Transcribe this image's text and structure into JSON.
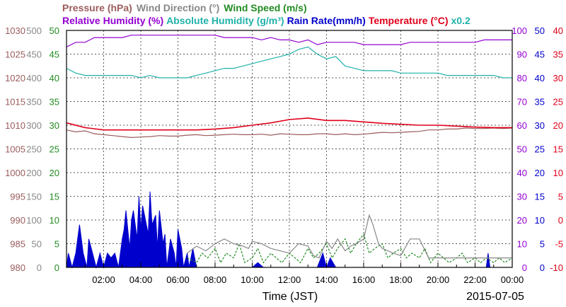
{
  "chart_data": {
    "type": "line",
    "date": "2015-07-05",
    "xlabel": "Time (JST)",
    "x_ticks": [
      "02:00",
      "04:00",
      "06:00",
      "08:00",
      "10:00",
      "12:00",
      "14:00",
      "16:00",
      "18:00",
      "20:00",
      "22:00",
      "00:00"
    ],
    "legend_row1": [
      {
        "label": "Pressure (hPa)",
        "color": "#9b5c5c"
      },
      {
        "label": "Wind Direction (°)",
        "color": "#888888"
      },
      {
        "label": "Wind Speed (m/s)",
        "color": "#228b22"
      }
    ],
    "legend_row2": [
      {
        "label": "Relative Humidity (%)",
        "color": "#9400d3"
      },
      {
        "label": "Absolute Humidity (g/m³)",
        "color": "#20b2aa"
      },
      {
        "label": "Rain Rate(mm/h)",
        "color": "#0000cd"
      },
      {
        "label": "Temperature (°C)",
        "color": "#e0001b"
      },
      {
        "label": "x0.2",
        "color": "#20b2aa"
      }
    ],
    "axes": {
      "pressure": {
        "color": "#9b5c5c",
        "range": [
          980,
          1030
        ],
        "ticks": [
          "1030",
          "1025",
          "1020",
          "1015",
          "1010",
          "1005",
          "1000",
          "995",
          "990",
          "985",
          "980"
        ]
      },
      "wind_direction": {
        "color": "#888888",
        "range": [
          0,
          500
        ],
        "ticks": [
          "500",
          "450",
          "400",
          "350",
          "300",
          "250",
          "200",
          "150",
          "100",
          "50",
          "0"
        ]
      },
      "wind_speed": {
        "color": "#228b22",
        "range": [
          0,
          50
        ],
        "ticks": [
          "50",
          "45",
          "40",
          "35",
          "30",
          "25",
          "20",
          "15",
          "10",
          "5",
          "0"
        ]
      },
      "humidity": {
        "color": "#9400d3",
        "range": [
          0,
          100
        ],
        "ticks": [
          "100",
          "90",
          "80",
          "70",
          "60",
          "50",
          "40",
          "30",
          "20",
          "10",
          "0"
        ]
      },
      "rain_rate": {
        "color": "#0000cd",
        "range": [
          0,
          50
        ],
        "ticks": [
          "50",
          "45",
          "40",
          "35",
          "30",
          "25",
          "20",
          "15",
          "10",
          "5",
          "0"
        ]
      },
      "temperature": {
        "color": "#e0001b",
        "range": [
          -10,
          40
        ],
        "ticks": [
          "40",
          "35",
          "30",
          "25",
          "20",
          "15",
          "10",
          "5",
          "0",
          "-5",
          "-10"
        ]
      }
    },
    "series": [
      {
        "name": "Relative Humidity (%)",
        "axis": "humidity",
        "color": "#9400d3",
        "x": [
          0,
          0.5,
          1,
          1.5,
          2,
          2.5,
          3,
          3.5,
          4,
          4.5,
          5,
          5.5,
          6,
          6.5,
          7,
          7.5,
          8,
          8.5,
          9,
          9.5,
          10,
          10.5,
          11,
          11.5,
          12,
          12.5,
          13,
          13.5,
          14,
          14.5,
          15,
          15.5,
          16,
          16.5,
          17,
          17.5,
          18,
          18.5,
          19,
          19.5,
          20,
          20.5,
          21,
          21.5,
          22,
          22.5,
          23,
          23.5,
          24
        ],
        "y": [
          93,
          95,
          95,
          97,
          97,
          97,
          97,
          98,
          98,
          98,
          98,
          98,
          98,
          98,
          98,
          98,
          98,
          97,
          97,
          97,
          97,
          96,
          97,
          96,
          96,
          95,
          96,
          94,
          95,
          95,
          95,
          95,
          94,
          94,
          94,
          94,
          94,
          95,
          95,
          95,
          95,
          95,
          95,
          95,
          95,
          96,
          96,
          96,
          96
        ]
      },
      {
        "name": "Absolute Humidity (g/m³)",
        "axis": "humidity",
        "color": "#20b2aa",
        "x": [
          0,
          0.5,
          1,
          1.5,
          2,
          2.5,
          3,
          3.5,
          4,
          4.5,
          5,
          5.5,
          6,
          6.5,
          7,
          7.5,
          8,
          8.5,
          9,
          9.5,
          10,
          10.5,
          11,
          11.5,
          12,
          12.5,
          13,
          13.5,
          14,
          14.5,
          15,
          15.5,
          16,
          16.5,
          17,
          17.5,
          18,
          18.5,
          19,
          19.5,
          20,
          20.5,
          21,
          21.5,
          22,
          22.5,
          23,
          23.5,
          24
        ],
        "y": [
          84,
          82,
          81,
          81,
          81,
          81,
          81,
          81,
          80,
          81,
          80,
          80,
          80,
          80,
          81,
          82,
          83,
          84,
          84,
          85,
          86,
          87,
          88,
          89,
          90,
          92,
          93,
          90,
          88,
          89,
          85,
          84,
          83,
          83,
          83,
          83,
          82,
          82,
          82,
          82,
          82,
          81,
          81,
          81,
          81,
          81,
          81,
          80,
          80
        ]
      },
      {
        "name": "Temperature (°C)",
        "axis": "temperature",
        "color": "#e0001b",
        "x": [
          0,
          1,
          2,
          3,
          4,
          5,
          6,
          7,
          8,
          9,
          10,
          11,
          12,
          13,
          14,
          15,
          16,
          17,
          18,
          19,
          20,
          21,
          22,
          23,
          24
        ],
        "y": [
          20.5,
          19.5,
          19.0,
          19.0,
          19.0,
          19.0,
          19.0,
          19.0,
          19.2,
          19.5,
          20.0,
          20.5,
          21.2,
          21.5,
          21.0,
          21.0,
          20.7,
          20.4,
          20.2,
          20.0,
          20.0,
          19.8,
          19.6,
          19.5,
          19.5
        ]
      },
      {
        "name": "Pressure (hPa)",
        "axis": "pressure",
        "color": "#9b5c5c",
        "x": [
          0,
          0.5,
          1,
          1.5,
          2,
          2.5,
          3,
          3.5,
          4,
          4.5,
          5,
          5.5,
          6,
          6.5,
          7,
          7.5,
          8,
          8.5,
          9,
          9.5,
          10,
          10.5,
          11,
          11.5,
          12,
          12.5,
          13,
          13.5,
          14,
          14.5,
          15,
          15.5,
          16,
          16.5,
          17,
          17.5,
          18,
          18.5,
          19,
          19.5,
          20,
          20.5,
          21,
          21.5,
          22,
          22.5,
          23,
          23.5,
          24
        ],
        "y": [
          1009.0,
          1008.6,
          1008.8,
          1008.2,
          1008.0,
          1007.8,
          1007.6,
          1007.4,
          1007.5,
          1007.6,
          1007.8,
          1007.7,
          1007.7,
          1007.9,
          1008.0,
          1007.8,
          1007.9,
          1008.0,
          1008.1,
          1008.0,
          1008.0,
          1008.1,
          1007.9,
          1008.2,
          1008.1,
          1008.0,
          1008.0,
          1008.2,
          1008.2,
          1008.0,
          1008.2,
          1008.0,
          1008.1,
          1008.3,
          1008.5,
          1008.4,
          1008.5,
          1008.6,
          1008.7,
          1009.0,
          1009.0,
          1009.2,
          1009.2,
          1009.4,
          1009.3,
          1009.3,
          1009.4,
          1009.3,
          1009.4
        ]
      },
      {
        "name": "Wind Direction (°)",
        "axis": "wind_direction",
        "color": "#888888",
        "x": [
          6.5,
          7,
          7.5,
          8,
          8.5,
          9,
          9.5,
          9.8,
          10,
          10.5,
          11,
          11.5,
          12,
          12.5,
          13,
          13.3,
          13.6,
          14,
          14.3,
          14.6,
          15,
          15.3,
          15.6,
          16,
          16.3,
          16.5,
          16.8,
          17,
          17.3,
          17.6,
          18,
          18.5,
          19,
          19.5,
          20,
          20.5,
          21,
          21.5,
          22,
          22.5,
          23,
          23.5,
          24
        ],
        "y": [
          30,
          45,
          35,
          50,
          60,
          50,
          45,
          40,
          55,
          50,
          40,
          35,
          30,
          50,
          45,
          25,
          20,
          55,
          40,
          60,
          35,
          45,
          50,
          60,
          110,
          90,
          50,
          40,
          35,
          30,
          25,
          60,
          60,
          20,
          20,
          20,
          20,
          20,
          20,
          20,
          20,
          20,
          20
        ]
      },
      {
        "name": "Wind Speed (m/s)",
        "axis": "wind_speed",
        "color": "#228b22",
        "x": [
          6.5,
          7,
          7.3,
          7.6,
          8,
          8.3,
          8.6,
          9,
          9.3,
          9.6,
          10,
          10.3,
          10.6,
          11,
          11.3,
          11.6,
          12,
          12.3,
          12.6,
          13,
          13.3,
          13.6,
          14,
          14.3,
          14.6,
          15,
          15.3,
          15.6,
          16,
          16.3,
          16.6,
          17,
          17.3,
          17.6,
          18,
          18.3,
          18.6,
          19,
          19.3,
          19.6,
          20,
          20.3,
          20.6,
          21,
          21.3,
          21.6,
          22,
          22.3,
          22.6,
          23,
          23.3,
          23.6,
          24
        ],
        "y": [
          2,
          1,
          3,
          2,
          4,
          1,
          3,
          2,
          5,
          1,
          2,
          4,
          1,
          3,
          2,
          1,
          3,
          2,
          1,
          4,
          2,
          3,
          5,
          2,
          4,
          6,
          3,
          5,
          7,
          3,
          4,
          5,
          2,
          3,
          4,
          2,
          3,
          2,
          4,
          1,
          3,
          2,
          1,
          2,
          3,
          1,
          2,
          1,
          2,
          1,
          2,
          1,
          2
        ]
      },
      {
        "name": "Rain Rate(mm/h)",
        "axis": "rain_rate",
        "color": "#0000cd",
        "x": [
          0,
          0.1,
          0.3,
          0.5,
          0.7,
          0.9,
          1.1,
          1.2,
          1.4,
          1.6,
          1.8,
          2.0,
          2.2,
          2.4,
          2.6,
          2.8,
          3.0,
          3.1,
          3.2,
          3.4,
          3.5,
          3.6,
          3.8,
          3.9,
          4.0,
          4.1,
          4.2,
          4.4,
          4.5,
          4.6,
          4.8,
          4.9,
          5.0,
          5.2,
          5.3,
          5.4,
          5.6,
          5.8,
          5.9,
          6.0,
          6.2,
          6.3,
          6.5,
          6.6,
          6.8,
          7.0,
          7.2,
          7.4,
          7.6,
          8.0,
          8.5,
          9.0,
          9.5,
          10.0,
          10.3,
          10.6,
          11,
          11.5,
          12,
          12.5,
          13,
          13.5,
          13.8,
          14,
          14.2,
          14.5,
          15,
          15.5,
          16,
          17,
          18,
          19,
          20,
          21,
          22,
          22.6,
          22.7,
          22.8,
          23,
          24
        ],
        "y": [
          0,
          3,
          0,
          3,
          9,
          3,
          0,
          6,
          3,
          0,
          3,
          0,
          3,
          2,
          3,
          0,
          6,
          8,
          12,
          4,
          10,
          12,
          6,
          15,
          8,
          13,
          11,
          7,
          16,
          9,
          11,
          4,
          12,
          5,
          7,
          0,
          6,
          3,
          0,
          8,
          4,
          0,
          3,
          0,
          4,
          0,
          0,
          0,
          0,
          0,
          0,
          0,
          0,
          0,
          1,
          0,
          0,
          0,
          0,
          0,
          0,
          0,
          3,
          0,
          2,
          0,
          0,
          0,
          0,
          0,
          0,
          0,
          0,
          0,
          0,
          0,
          3,
          0,
          0,
          0
        ]
      }
    ]
  }
}
